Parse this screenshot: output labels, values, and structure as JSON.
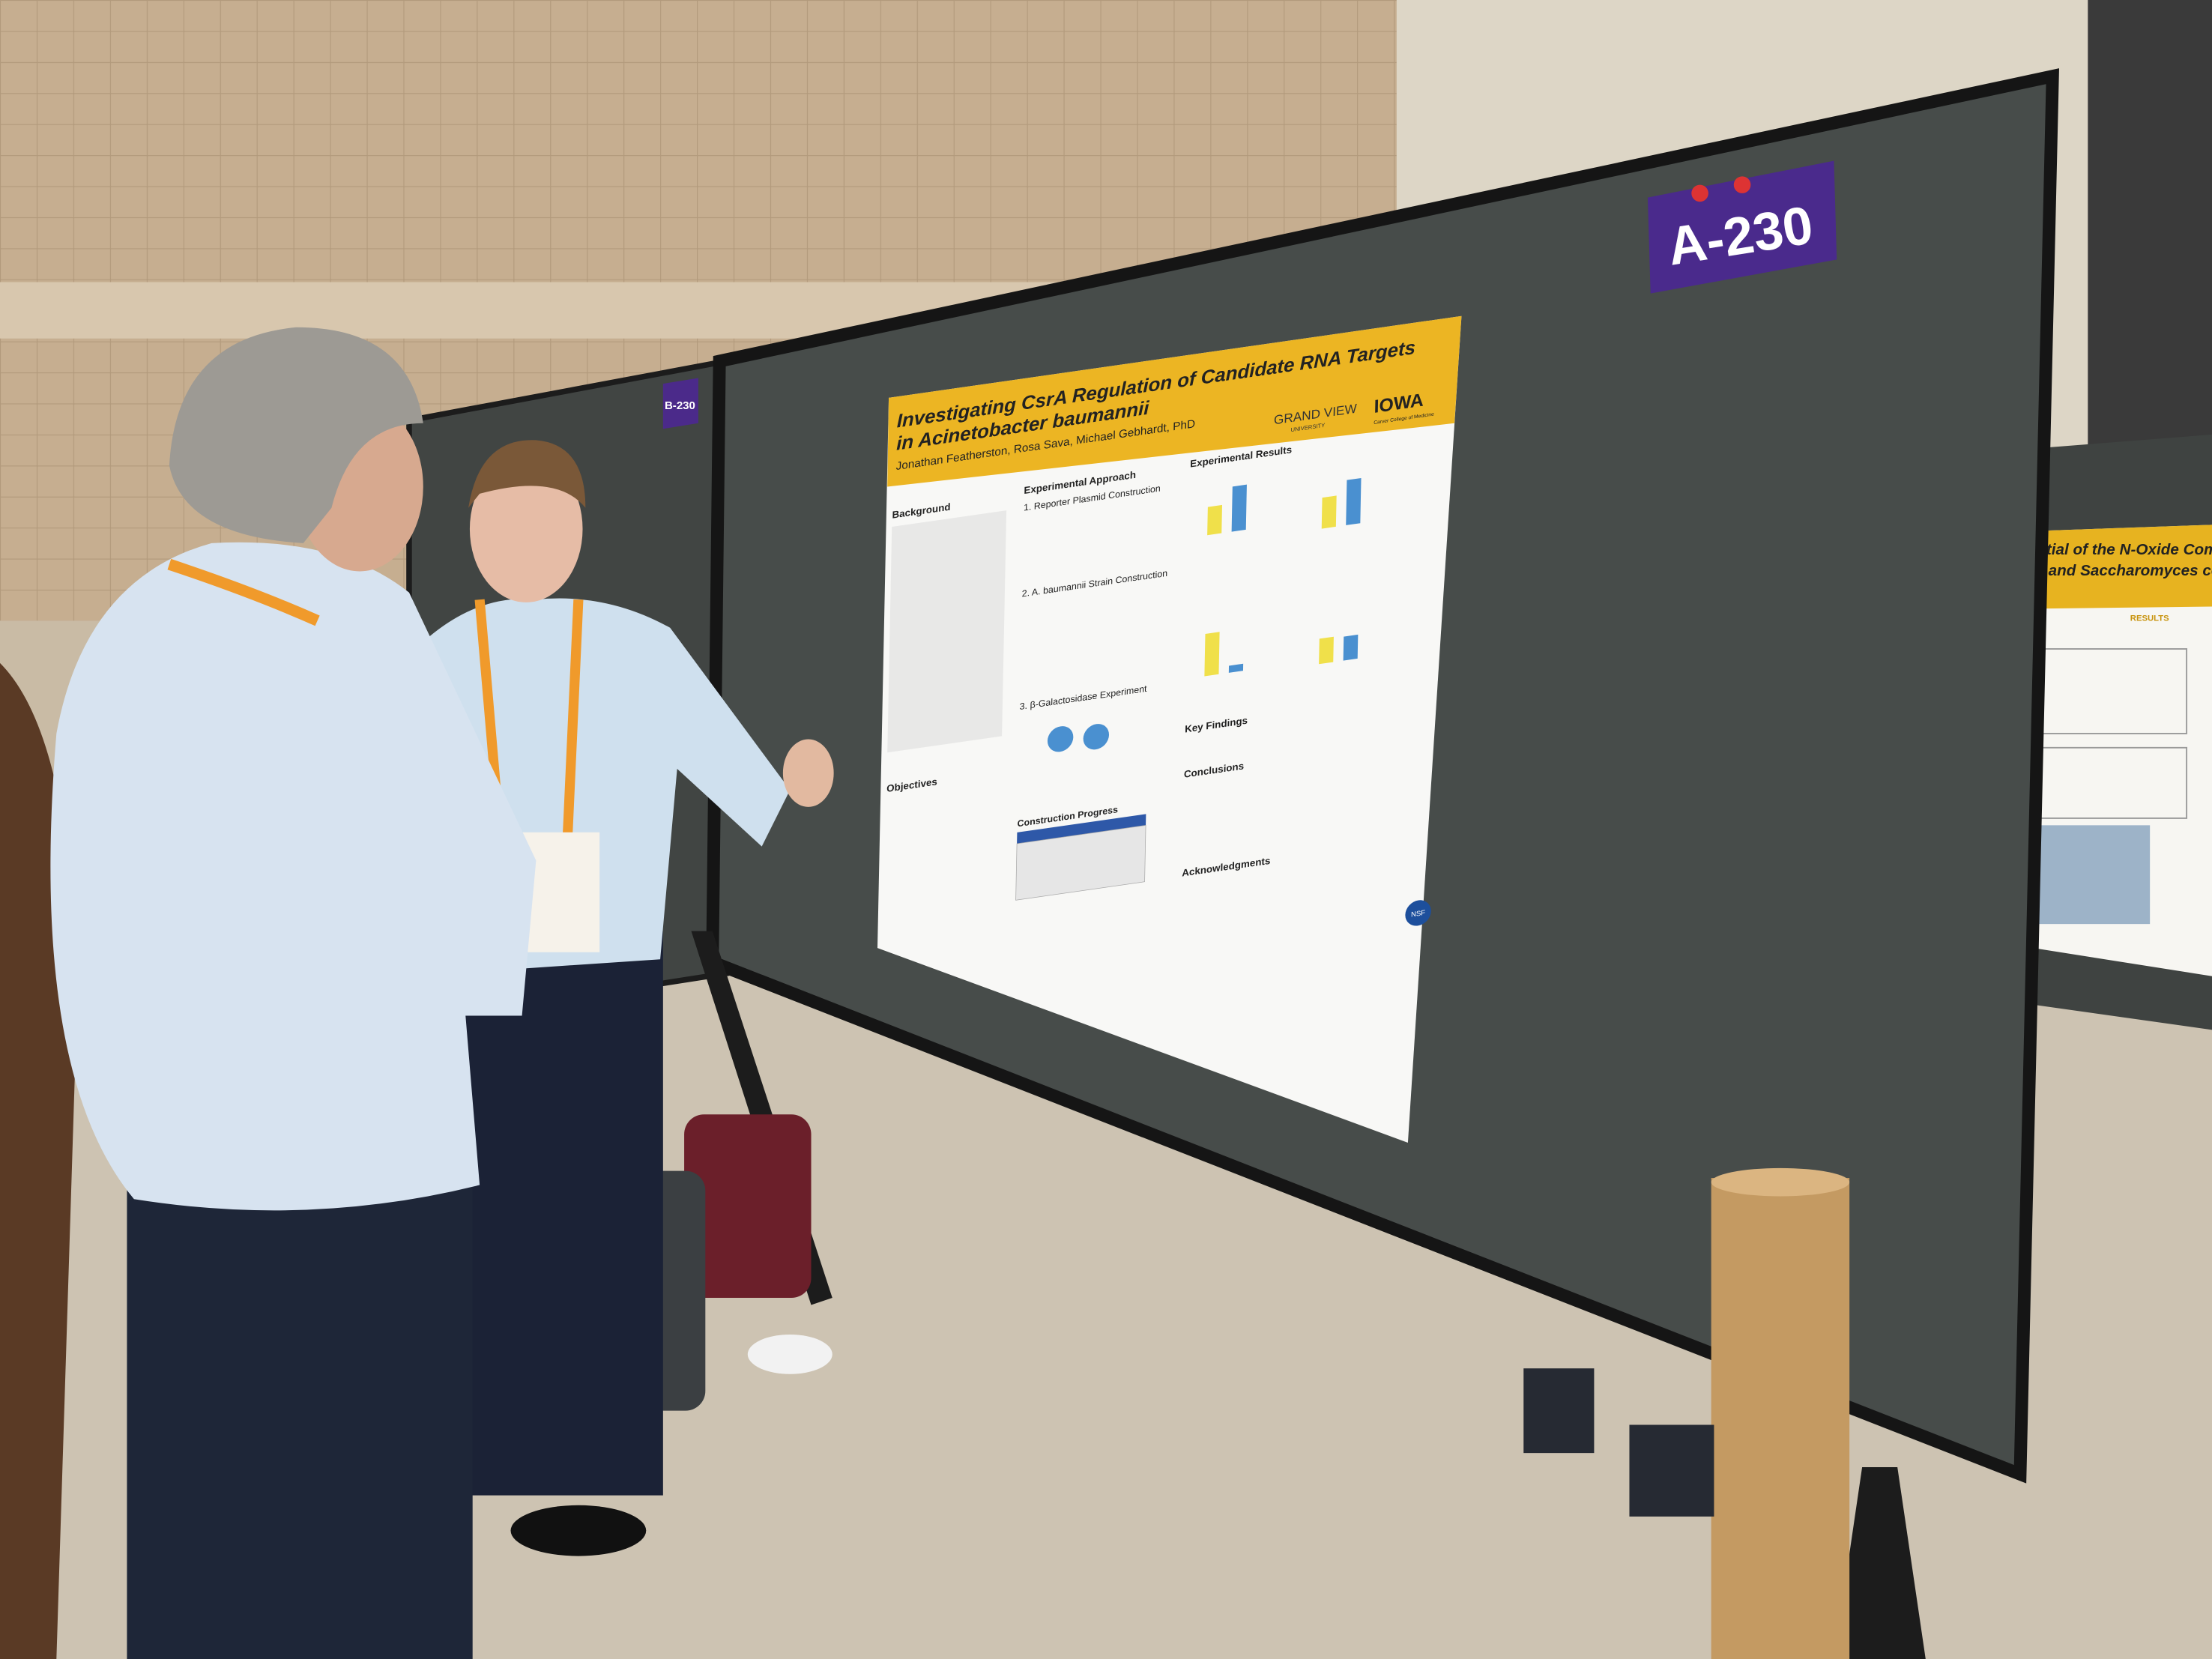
{
  "signs": {
    "main": "A-230",
    "left": "B-230"
  },
  "poster": {
    "title_line1": "Investigating CsrA Regulation of Candidate RNA Targets",
    "title_line2": "in Acinetobacter baumannii",
    "authors": "Jonathan Featherston, Rosa Sava, Michael Gebhardt, PhD",
    "logo_left": "GRAND VIEW",
    "logo_left_sub": "UNIVERSITY",
    "logo_right": "IOWA",
    "logo_right_sub": "Carver College of Medicine",
    "background": "Background",
    "objectives": "Objectives",
    "approach": "Experimental Approach",
    "step1": "1. Reporter Plasmid Construction",
    "step2": "2. A. baumannii Strain Construction",
    "step3": "3. β-Galactosidase Experiment",
    "progress": "Construction Progress",
    "results": "Experimental Results",
    "key_findings": "Key Findings",
    "conclusions": "Conclusions",
    "acknowledgments": "Acknowledgments",
    "funder": "NSF"
  },
  "neighbor_poster": {
    "title_line1": "Potential of the N-Oxide Compou",
    "title_line2": "coli and Saccharomyces cerevis",
    "heading": "RESULTS"
  }
}
